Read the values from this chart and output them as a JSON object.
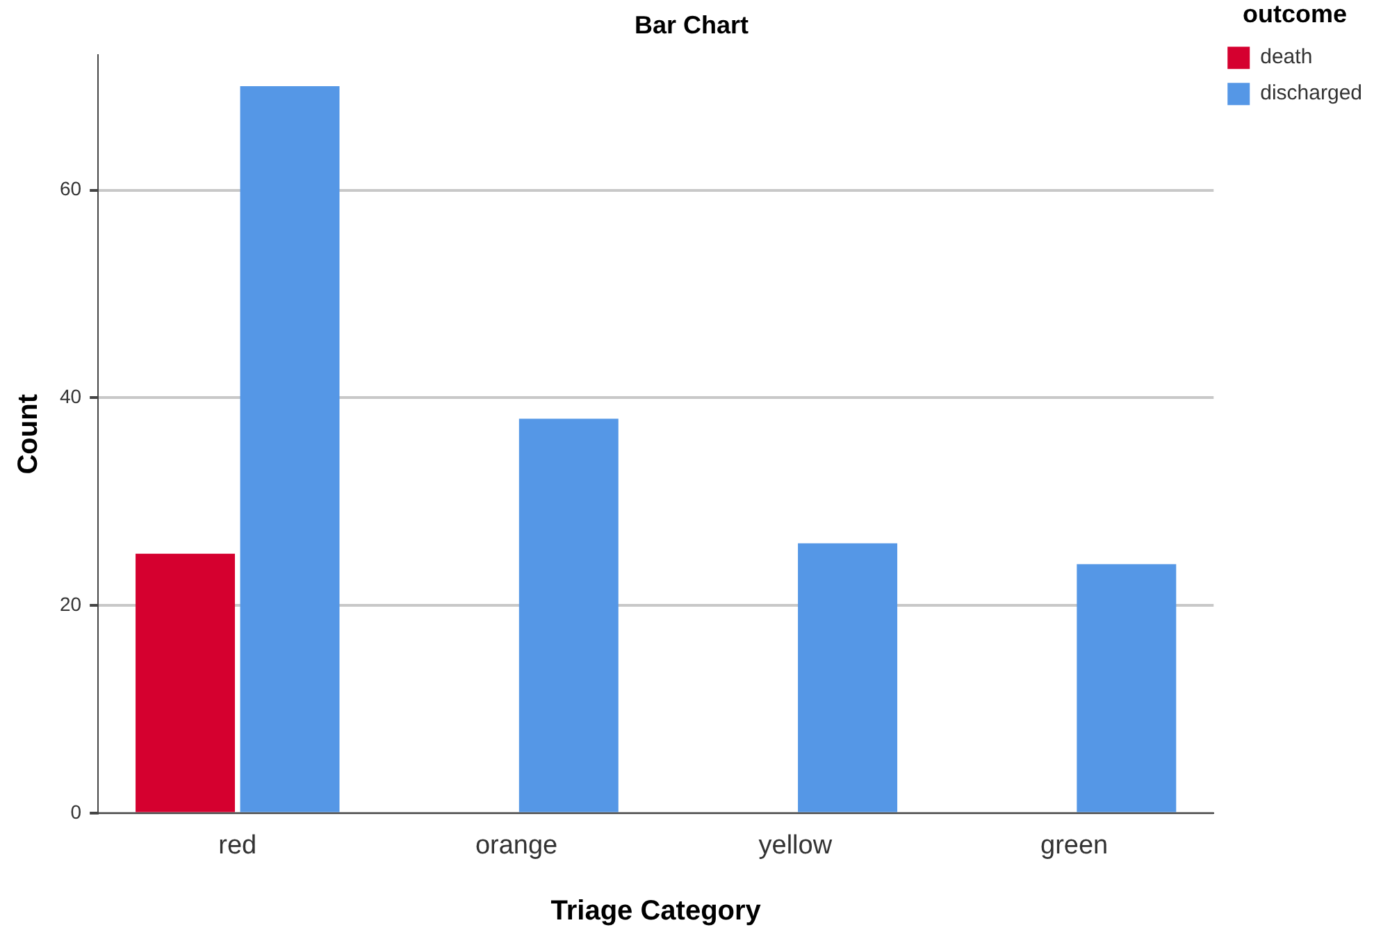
{
  "chart_data": {
    "type": "bar",
    "title": "Bar Chart",
    "xlabel": "Triage Category",
    "ylabel": "Count",
    "legend_title": "outcome",
    "categories": [
      "red",
      "orange",
      "yellow",
      "green"
    ],
    "series": [
      {
        "name": "death",
        "color": "#d5002f",
        "values": [
          25,
          0,
          0,
          0
        ]
      },
      {
        "name": "discharged",
        "color": "#5597e6",
        "values": [
          70,
          38,
          26,
          24
        ]
      }
    ],
    "ylim": [
      0,
      73
    ],
    "yticks": [
      0,
      20,
      40,
      60
    ],
    "grid": "y",
    "legend": "top right"
  }
}
